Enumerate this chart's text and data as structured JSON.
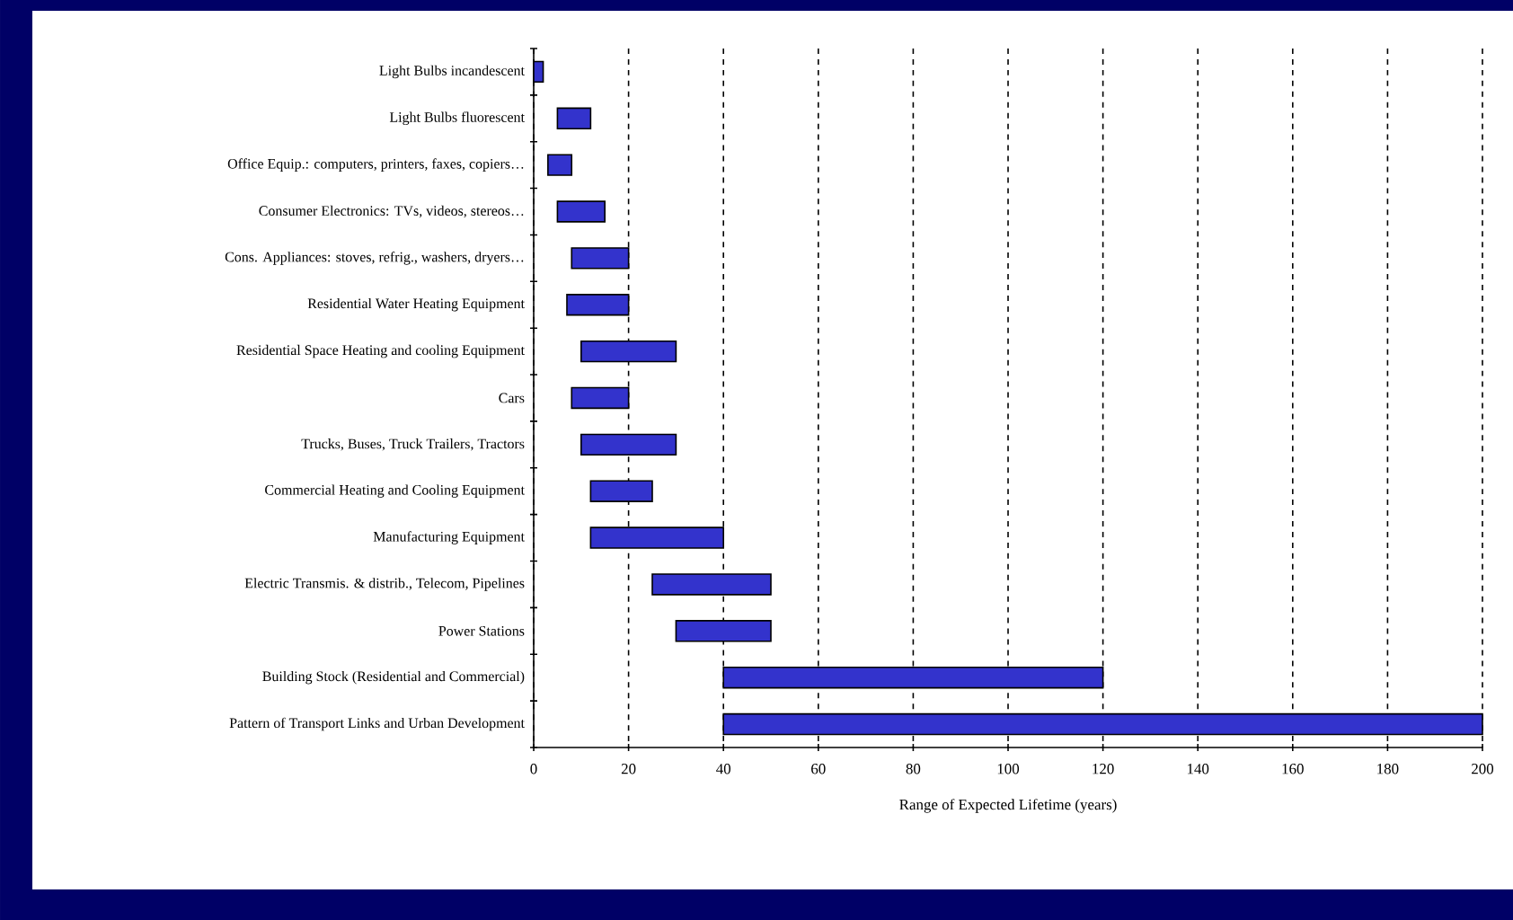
{
  "chart_data": {
    "type": "bar",
    "orientation": "horizontal",
    "xlabel": "Range of Expected Lifetime (years)",
    "categories": [
      "Light Bulbs incandescent",
      "Light Bulbs fluorescent",
      "Office Equip.: computers, printers, faxes, copiers…",
      "Consumer Electronics: TVs, videos, stereos…",
      "Cons. Appliances: stoves, refrig., washers, dryers…",
      "Residential Water Heating Equipment",
      "Residential Space Heating and cooling Equipment",
      "Cars",
      "Trucks, Buses, Truck Trailers, Tractors",
      "Commercial Heating and Cooling Equipment",
      "Manufacturing Equipment",
      "Electric Transmis. & distrib., Telecom, Pipelines",
      "Power Stations",
      "Building Stock (Residential and Commercial)",
      "Pattern of Transport Links and Urban Development"
    ],
    "base": [
      0,
      5,
      3,
      5,
      8,
      7,
      10,
      8,
      10,
      12,
      12,
      25,
      30,
      40,
      40
    ],
    "values": [
      2,
      7,
      5,
      10,
      12,
      13,
      20,
      12,
      20,
      13,
      28,
      25,
      20,
      80,
      160
    ],
    "color": "#3333cc",
    "xlim": [
      0,
      200
    ],
    "xticks": [
      0,
      20,
      40,
      60,
      80,
      100,
      120,
      140,
      160,
      180,
      200
    ],
    "grid": "x"
  }
}
